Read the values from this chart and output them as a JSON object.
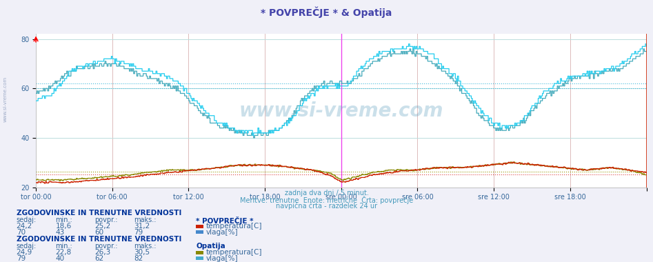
{
  "title": "* POVPREČJE * & Opatija",
  "title_color": "#4444aa",
  "bg_color": "#f0f0f8",
  "plot_bg_color": "#ffffff",
  "subtitle_lines": [
    "zadnja dva dni / 5 minut.",
    "Meritve: trenutne  Enote: metrične  Črta: povprečje",
    "navpična črta - razdelek 24 ur"
  ],
  "subtitle_color": "#4499bb",
  "xticklabels": [
    "tor 00:00",
    "tor 06:00",
    "tor 12:00",
    "tor 18:00",
    "sre 00:00",
    "sre 06:00",
    "sre 12:00",
    "sre 18:00",
    ""
  ],
  "xtick_positions": [
    0.0,
    0.125,
    0.25,
    0.375,
    0.5,
    0.625,
    0.75,
    0.875,
    1.0
  ],
  "ylim": [
    20,
    82
  ],
  "yticks": [
    20,
    40,
    60,
    80
  ],
  "grid_color_v": "#ddbbbb",
  "grid_color_h": "#bbdddd",
  "vline_color_day": "#ee44ee",
  "avg_line_color_temp_povp": "#dd4444",
  "avg_line_color_hum_povp": "#44bbdd",
  "avg_line_color_temp_op": "#999900",
  "avg_line_color_hum_op": "#44bbdd",
  "color_hum_povp": "#22ccee",
  "color_hum_op": "#44aabb",
  "color_temp_povp": "#cc2200",
  "color_temp_op": "#888800",
  "avg_temp_povp": 25.2,
  "avg_temp_opatija": 26.3,
  "avg_hum_povp": 60.0,
  "avg_hum_opatija": 62.0,
  "n_points": 576,
  "day_vlines": [
    0.5
  ],
  "sixhour_vlines": [
    0.125,
    0.25,
    0.375,
    0.625,
    0.75,
    0.875
  ],
  "section1_title": "ZGODOVINSKE IN TRENUTNE VREDNOSTI",
  "section1_header": [
    "sedaj:",
    "min.:",
    "povpr.:",
    "maks.:"
  ],
  "section1_station": "* POVPREČJE *",
  "section1_rows": [
    {
      "values": [
        "24,2",
        "18,6",
        "25,2",
        "31,2"
      ],
      "label": "temperatura[C]",
      "color": "#cc2200"
    },
    {
      "values": [
        "70",
        "43",
        "60",
        "79"
      ],
      "label": "vlaga[%]",
      "color": "#4488cc"
    }
  ],
  "section2_title": "ZGODOVINSKE IN TRENUTNE VREDNOSTI",
  "section2_header": [
    "sedaj:",
    "min.:",
    "povpr.:",
    "maks.:"
  ],
  "section2_station": "Opatija",
  "section2_rows": [
    {
      "values": [
        "24,9",
        "22,8",
        "26,3",
        "30,5"
      ],
      "label": "temperatura[C]",
      "color": "#888800"
    },
    {
      "values": [
        "79",
        "40",
        "62",
        "82"
      ],
      "label": "vlaga[%]",
      "color": "#44aacc"
    }
  ],
  "text_color": "#336699",
  "header_bold_color": "#003399",
  "watermark_color": "#5599bb"
}
